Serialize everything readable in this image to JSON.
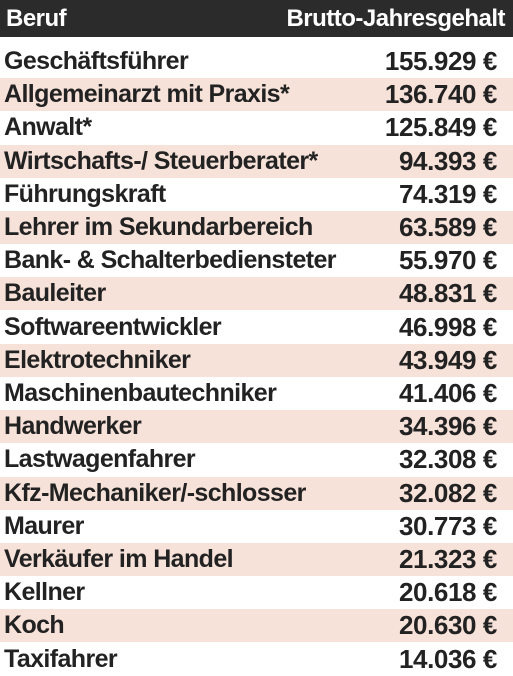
{
  "header": {
    "job_label": "Beruf",
    "salary_label": "Brutto-Jahresgehalt"
  },
  "colors": {
    "header_bg": "#2b2b2b",
    "header_text": "#ffffff",
    "stripe": "#f7e2da",
    "row_plain": "#ffffff",
    "text": "#222222"
  },
  "chart_data": {
    "type": "table",
    "columns": [
      "Beruf",
      "Brutto-Jahresgehalt"
    ],
    "rows": [
      {
        "job": "Geschäftsführer",
        "salary": "155.929 €",
        "value": 155929
      },
      {
        "job": "Allgemeinarzt mit Praxis*",
        "salary": "136.740 €",
        "value": 136740
      },
      {
        "job": "Anwalt*",
        "salary": "125.849 €",
        "value": 125849
      },
      {
        "job": "Wirtschafts-/ Steuerberater*",
        "salary": "94.393 €",
        "value": 94393
      },
      {
        "job": "Führungskraft",
        "salary": "74.319 €",
        "value": 74319
      },
      {
        "job": "Lehrer im Sekundarbereich",
        "salary": "63.589 €",
        "value": 63589
      },
      {
        "job": "Bank- & Schalterbediensteter",
        "salary": "55.970 €",
        "value": 55970
      },
      {
        "job": "Bauleiter",
        "salary": "48.831 €",
        "value": 48831
      },
      {
        "job": "Softwareentwickler",
        "salary": "46.998 €",
        "value": 46998
      },
      {
        "job": "Elektrotechniker",
        "salary": "43.949 €",
        "value": 43949
      },
      {
        "job": "Maschinenbautechniker",
        "salary": "41.406 €",
        "value": 41406
      },
      {
        "job": "Handwerker",
        "salary": "34.396 €",
        "value": 34396
      },
      {
        "job": "Lastwagenfahrer",
        "salary": "32.308 €",
        "value": 32308
      },
      {
        "job": "Kfz-Mechaniker/-schlosser",
        "salary": "32.082 €",
        "value": 32082
      },
      {
        "job": "Maurer",
        "salary": "30.773 €",
        "value": 30773
      },
      {
        "job": "Verkäufer im Handel",
        "salary": "21.323 €",
        "value": 21323
      },
      {
        "job": "Kellner",
        "salary": "20.618 €",
        "value": 20618
      },
      {
        "job": "Koch",
        "salary": "20.630 €",
        "value": 20630
      },
      {
        "job": "Taxifahrer",
        "salary": "14.036 €",
        "value": 14036
      }
    ]
  }
}
